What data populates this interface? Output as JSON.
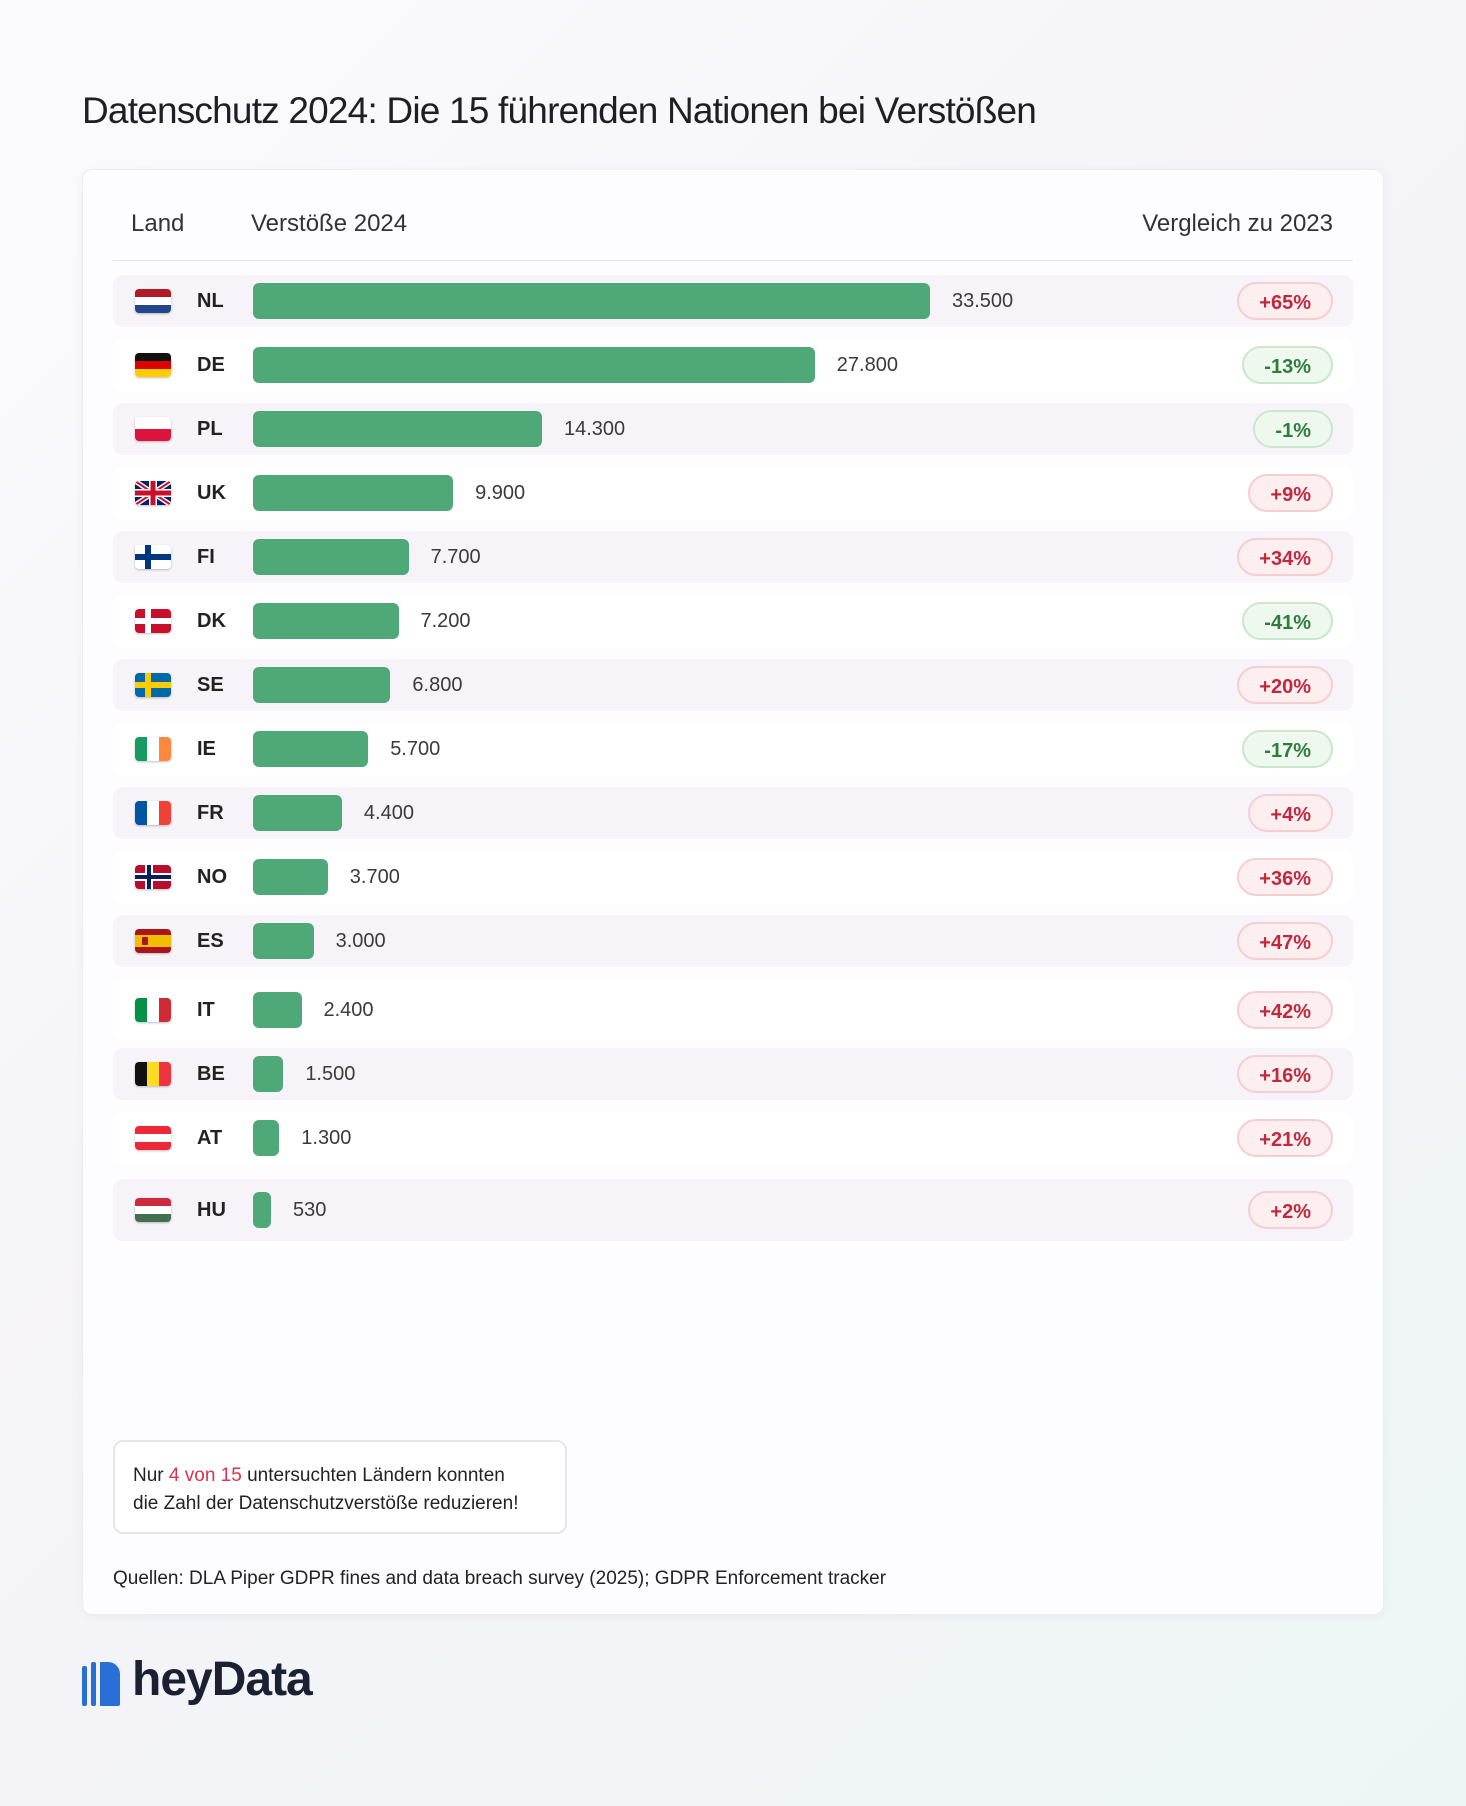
{
  "title": "Datenschutz 2024: Die 15 führenden Nationen bei Verstößen",
  "header": {
    "land": "Land",
    "value": "Verstöße 2024",
    "change": "Vergleich zu 2023"
  },
  "colors": {
    "bar": "#4fa877",
    "increase": "#c0293e",
    "decrease": "#2f7d3c",
    "highlight": "#d9344f"
  },
  "chart_data": {
    "type": "bar",
    "orientation": "horizontal",
    "title": "Datenschutz 2024: Die 15 führenden Nationen bei Verstößen",
    "categories": [
      "NL",
      "DE",
      "PL",
      "UK",
      "FI",
      "DK",
      "SE",
      "IE",
      "FR",
      "NO",
      "ES",
      "IT",
      "BE",
      "AT",
      "HU"
    ],
    "values": [
      33500,
      27800,
      14300,
      9900,
      7700,
      7200,
      6800,
      5700,
      4400,
      3700,
      3000,
      2400,
      1500,
      1300,
      530
    ],
    "value_labels": [
      "33.500",
      "27.800",
      "14.300",
      "9.900",
      "7.700",
      "7.200",
      "6.800",
      "5.700",
      "4.400",
      "3.700",
      "3.000",
      "2.400",
      "1.500",
      "1.300",
      "530"
    ],
    "changes": [
      "+65%",
      "-13%",
      "-1%",
      "+9%",
      "+34%",
      "-41%",
      "+20%",
      "-17%",
      "+4%",
      "+36%",
      "+47%",
      "+42%",
      "+16%",
      "+21%",
      "+2%"
    ],
    "flags": [
      "flag-nl-icon",
      "flag-de-icon",
      "flag-pl-icon",
      "flag-uk-icon",
      "flag-fi-icon",
      "flag-dk-icon",
      "flag-se-icon",
      "flag-ie-icon",
      "flag-fr-icon",
      "flag-no-icon",
      "flag-es-icon",
      "flag-it-icon",
      "flag-be-icon",
      "flag-at-icon",
      "flag-hu-icon"
    ],
    "xlim": [
      0,
      33500
    ],
    "grid": false
  },
  "note": {
    "prefix": "Nur ",
    "highlight": "4 von 15",
    "suffix": " untersuchten Ländern konnten",
    "line2": "die Zahl der Datenschutzverstöße reduzieren!"
  },
  "sources": "Quellen: DLA Piper GDPR fines and data breach survey (2025); GDPR Enforcement tracker",
  "logo": {
    "text": "heyData",
    "icon": "heydata-logo-icon"
  }
}
